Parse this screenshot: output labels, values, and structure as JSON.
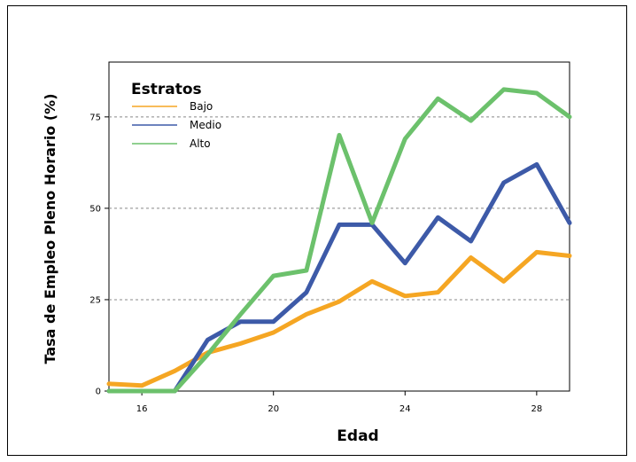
{
  "chart_data": {
    "type": "line",
    "xlabel": "Edad",
    "ylabel": "Tasa de Empleo Pleno Horario (%)",
    "xlim": [
      15,
      29
    ],
    "ylim": [
      0,
      90
    ],
    "x_ticks": [
      16,
      20,
      24,
      28
    ],
    "y_ticks": [
      0,
      25,
      50,
      75
    ],
    "grid": "horizontal dashed",
    "legend": {
      "title": "Estratos",
      "placement": "top-left"
    },
    "x": [
      15,
      16,
      17,
      18,
      19,
      20,
      21,
      22,
      23,
      24,
      25,
      26,
      27,
      28,
      29
    ],
    "series": [
      {
        "name": "Bajo",
        "color": "#f5a623",
        "values": [
          2,
          1.5,
          5.5,
          10.5,
          13,
          16,
          21,
          24.5,
          30,
          26,
          27,
          36.5,
          30,
          38,
          37
        ]
      },
      {
        "name": "Medio",
        "color": "#3d5aa8",
        "values": [
          0,
          0,
          0,
          14,
          19,
          19,
          27,
          45.5,
          45.5,
          35,
          47.5,
          41,
          57,
          62,
          46
        ]
      },
      {
        "name": "Alto",
        "color": "#6cc16c",
        "values": [
          0,
          0,
          0,
          10,
          21,
          31.5,
          33,
          70,
          46,
          69,
          80,
          74,
          82.5,
          81.5,
          75
        ]
      }
    ]
  }
}
